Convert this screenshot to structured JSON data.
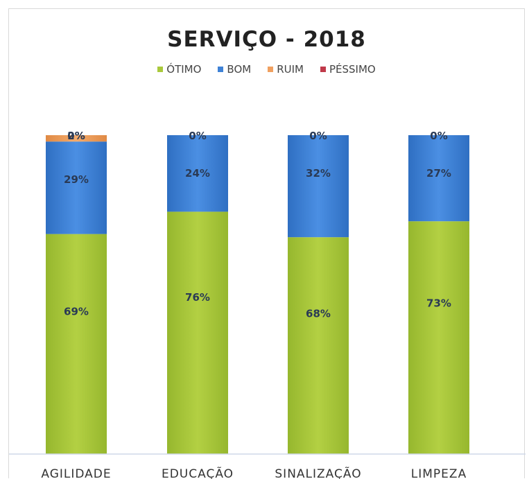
{
  "chart_data": {
    "type": "bar",
    "stacked": true,
    "title": "SERVIÇO - 2018",
    "xlabel": "",
    "ylabel": "",
    "ylim": [
      0,
      100
    ],
    "grid": false,
    "legend_position": "top",
    "categories": [
      "AGILIDADE",
      "EDUCAÇÃO",
      "SINALIZAÇÃO",
      "LIMPEZA"
    ],
    "series": [
      {
        "name": "ÓTIMO",
        "color": "#a9c93c",
        "values": [
          69,
          76,
          68,
          73
        ]
      },
      {
        "name": "BOM",
        "color": "#3f82d6",
        "values": [
          29,
          24,
          32,
          27
        ]
      },
      {
        "name": "RUIM",
        "color": "#f0a060",
        "values": [
          2,
          0,
          0,
          0
        ]
      },
      {
        "name": "PÉSSIMO",
        "color": "#c03a4a",
        "values": [
          0,
          0,
          0,
          0
        ]
      }
    ],
    "data_labels": {
      "ÓTIMO": [
        "69%",
        "76%",
        "68%",
        "73%"
      ],
      "BOM": [
        "29%",
        "24%",
        "32%",
        "27%"
      ],
      "RUIM": [
        "2%",
        "",
        "",
        ""
      ],
      "PÉSSIMO": [
        "0%",
        "0%",
        "0%",
        "0%"
      ]
    }
  }
}
